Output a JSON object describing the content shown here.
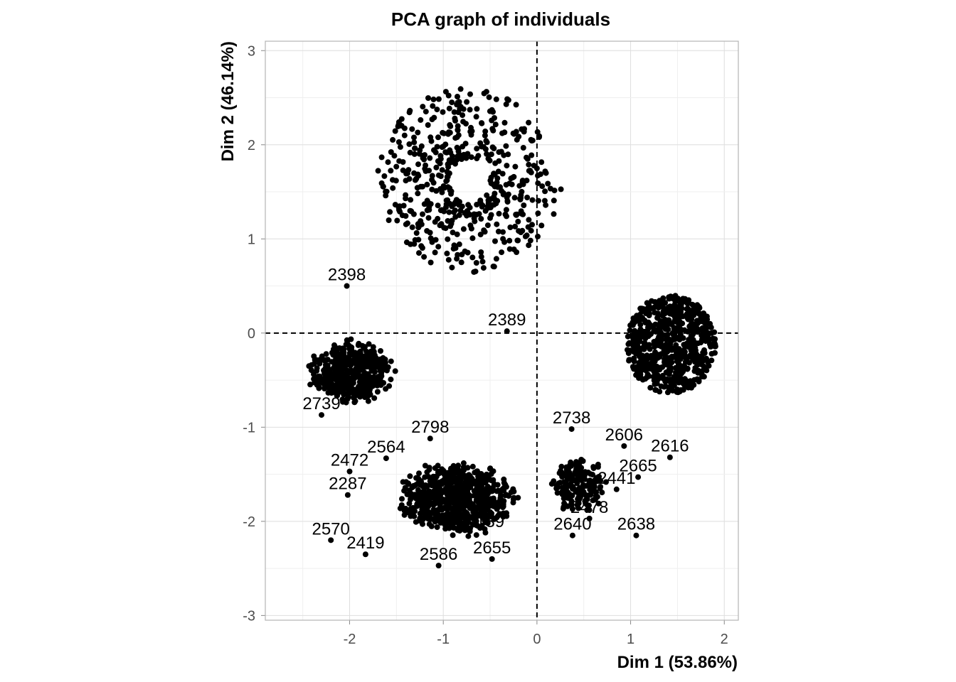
{
  "chart_data": {
    "type": "scatter",
    "title": "PCA graph of individuals",
    "xlabel": "Dim 1 (53.86%)",
    "ylabel": "Dim 2 (46.14%)",
    "xlim": [
      -2.9,
      2.15
    ],
    "ylim": [
      -3.05,
      3.1
    ],
    "x_ticks": [
      -2,
      -1,
      0,
      1,
      2
    ],
    "y_ticks": [
      -3,
      -2,
      -1,
      0,
      1,
      2,
      3
    ],
    "grid": true,
    "reference_lines": {
      "x": 0,
      "y": 0,
      "style": "dashed"
    },
    "clusters": [
      {
        "name": "ring-top",
        "shape": "ring",
        "center": [
          -0.72,
          1.62
        ],
        "rx_range": [
          0.22,
          0.99
        ],
        "ry_range": [
          0.24,
          0.98
        ],
        "count": 520
      },
      {
        "name": "disc-right",
        "shape": "disc",
        "center": [
          1.43,
          -0.12
        ],
        "rx": 0.48,
        "ry": 0.52,
        "count": 650
      },
      {
        "name": "blob-left",
        "shape": "blob",
        "center": [
          -1.98,
          -0.42
        ],
        "rx": 0.5,
        "ry": 0.36,
        "count": 480
      },
      {
        "name": "blob-bottom",
        "shape": "blob",
        "center": [
          -0.85,
          -1.75
        ],
        "rx": 0.68,
        "ry": 0.42,
        "count": 700
      },
      {
        "name": "blob-bottom-right",
        "shape": "blob",
        "center": [
          0.45,
          -1.62
        ],
        "rx": 0.32,
        "ry": 0.32,
        "count": 170
      }
    ],
    "labeled_points": [
      {
        "label": "2398",
        "x": -2.03,
        "y": 0.5
      },
      {
        "label": "2738",
        "x": 0.37,
        "y": -1.02
      },
      {
        "label": "2606",
        "x": 0.93,
        "y": -1.2
      },
      {
        "label": "2616",
        "x": 1.42,
        "y": -1.32
      },
      {
        "label": "2665",
        "x": 1.08,
        "y": -1.53
      },
      {
        "label": "2638",
        "x": 1.06,
        "y": -2.15
      },
      {
        "label": "2640",
        "x": 0.38,
        "y": -2.15
      },
      {
        "label": "2655",
        "x": -0.48,
        "y": -2.4
      },
      {
        "label": "2586",
        "x": -1.05,
        "y": -2.47
      },
      {
        "label": "2472",
        "x": -2.0,
        "y": -1.47
      },
      {
        "label": "2570",
        "x": -2.2,
        "y": -2.2
      },
      {
        "label": "2739",
        "x": -2.3,
        "y": -0.87
      },
      {
        "label": "2564",
        "x": -1.61,
        "y": -1.33
      },
      {
        "label": "2798",
        "x": -1.14,
        "y": -1.12
      },
      {
        "label": "2478",
        "x": 0.56,
        "y": -1.97
      },
      {
        "label": "2441",
        "x": 0.85,
        "y": -1.66
      },
      {
        "label": "2139",
        "x": -0.55,
        "y": -2.12
      },
      {
        "label": "2287",
        "x": -2.02,
        "y": -1.72
      },
      {
        "label": "2419",
        "x": -1.83,
        "y": -2.35
      },
      {
        "label": "2389",
        "x": -0.32,
        "y": 0.02
      }
    ]
  }
}
